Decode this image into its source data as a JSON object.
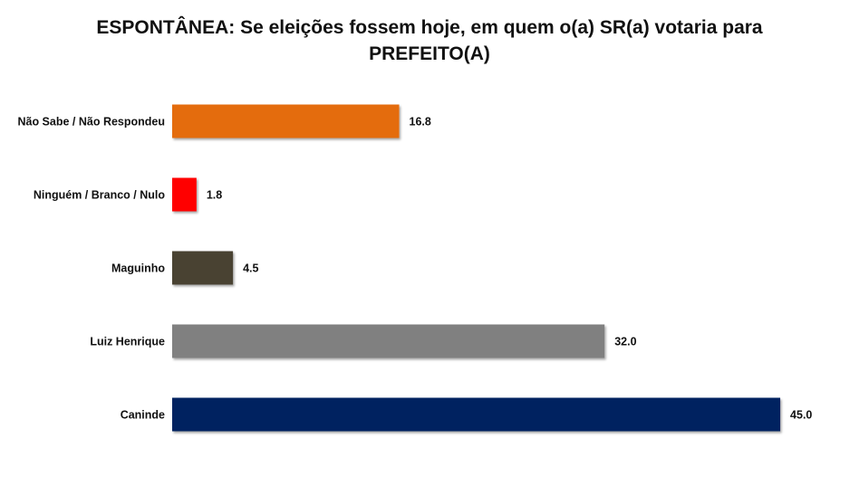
{
  "chart_data": {
    "type": "bar",
    "orientation": "horizontal",
    "title": {
      "line1": "ESPONTÂNEA: Se eleições fossem hoje, em quem o(a) SR(a) votaria para",
      "line2": "PREFEITO(A)"
    },
    "categories": [
      "Não Sabe / Não Respondeu",
      "Ninguém / Branco / Nulo",
      "Maguinho",
      "Luiz Henrique",
      "Caninde"
    ],
    "values": [
      16.8,
      1.8,
      4.5,
      32.0,
      45.0
    ],
    "value_labels": [
      "16.8",
      "1.8",
      "4.5",
      "32.0",
      "45.0"
    ],
    "colors": [
      "#E46C0A",
      "#FF0000",
      "#4A4231",
      "#808080",
      "#002060"
    ],
    "xlim": [
      0,
      45.6
    ],
    "grid": false,
    "legend": "none",
    "xlabel": "",
    "ylabel": ""
  }
}
